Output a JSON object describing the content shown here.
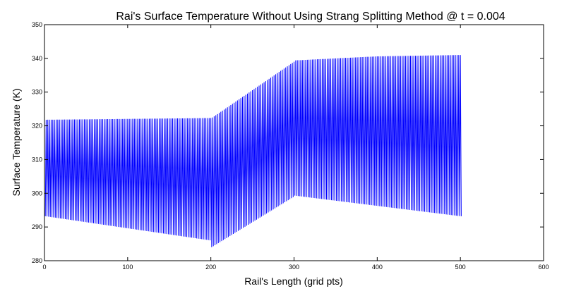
{
  "chart_data": {
    "type": "line",
    "title": "Rai's Surface Temperature Without Using Strang Splitting Method @ t = 0.004",
    "xlabel": "Rail's Length (grid pts)",
    "ylabel": "Surface Temperature (K)",
    "xlim": [
      0,
      600
    ],
    "ylim": [
      280,
      350
    ],
    "xticks": [
      0,
      100,
      200,
      300,
      400,
      500,
      600
    ],
    "yticks": [
      280,
      290,
      300,
      310,
      320,
      330,
      340,
      350
    ],
    "grid": false,
    "series": [
      {
        "color": "#0000ff",
        "pattern": "alternating",
        "n_points": 501,
        "upper_envelope": [
          [
            1,
            321.8
          ],
          [
            200,
            322.3
          ],
          [
            201,
            322.3
          ],
          [
            300,
            339.0
          ],
          [
            301,
            339.4
          ],
          [
            400,
            340.6
          ],
          [
            500,
            341.0
          ]
        ],
        "lower_envelope": [
          [
            1,
            293.2
          ],
          [
            200,
            286.0
          ],
          [
            201,
            284.0
          ],
          [
            300,
            299.0
          ],
          [
            301,
            299.3
          ],
          [
            500,
            293.2
          ]
        ]
      }
    ]
  }
}
